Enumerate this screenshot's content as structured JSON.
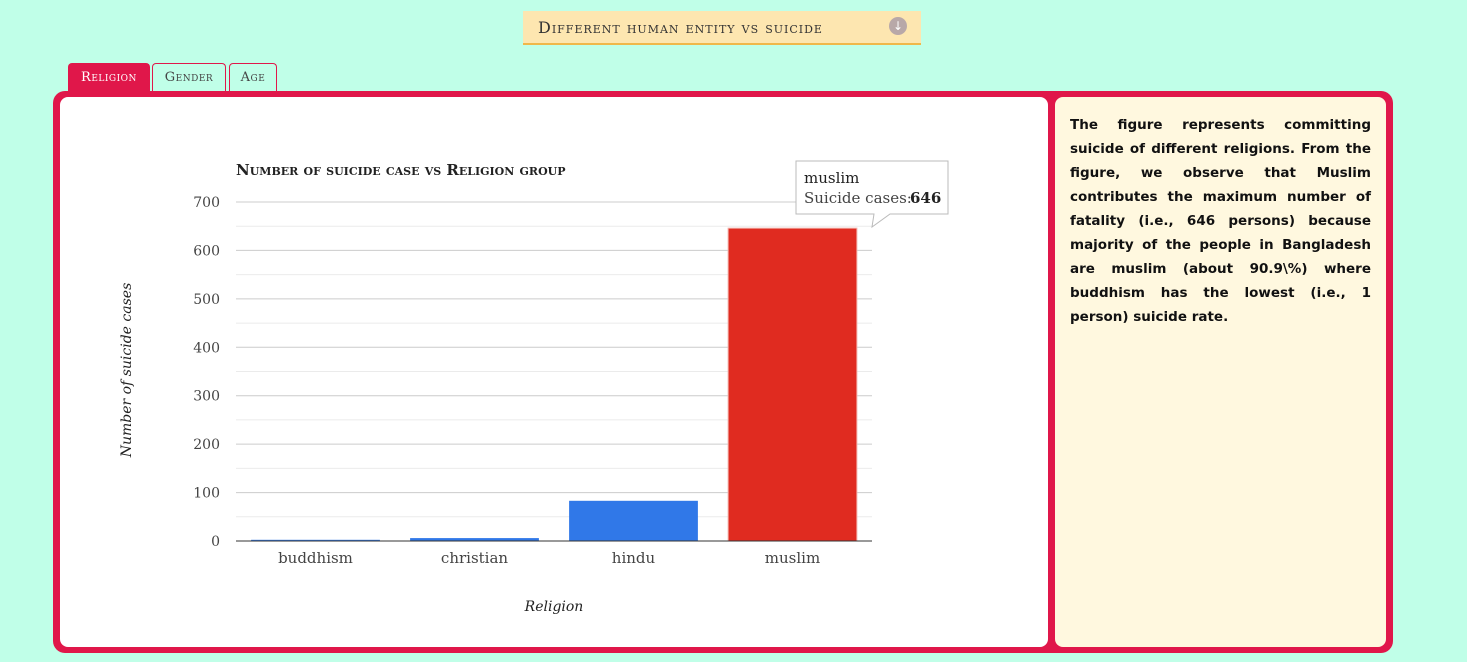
{
  "header": {
    "title": "Different human entity vs suicide",
    "icon": "download-circle-icon"
  },
  "tabs": [
    {
      "label": "Religion",
      "active": true
    },
    {
      "label": "Gender",
      "active": false
    },
    {
      "label": "Age",
      "active": false
    }
  ],
  "colors": {
    "accent": "#e0174a",
    "bar_blue": "#3078e8",
    "bar_red": "#e02b20"
  },
  "chart_data": {
    "type": "bar",
    "title": "Number of suicide case vs Religion group",
    "xlabel": "Religion",
    "ylabel": "Number of suicide cases",
    "categories": [
      "buddhism",
      "christian",
      "hindu",
      "muslim"
    ],
    "values": [
      1,
      6,
      83,
      646
    ],
    "series_label": "Suicide cases",
    "ylim": [
      0,
      700
    ],
    "yticks": [
      0,
      100,
      200,
      300,
      400,
      500,
      600,
      700
    ],
    "grid": true,
    "highlight_index": 3,
    "tooltip": {
      "category": "muslim",
      "label": "Suicide cases:",
      "value": "646"
    }
  },
  "description": "The figure represents committing suicide of different religions. From the figure, we observe that Muslim contributes the maximum number of fatality (i.e., 646 persons) because majority of the people in Bangladesh are muslim (about 90.9\\%) where buddhism has the lowest (i.e., 1 person) suicide rate."
}
